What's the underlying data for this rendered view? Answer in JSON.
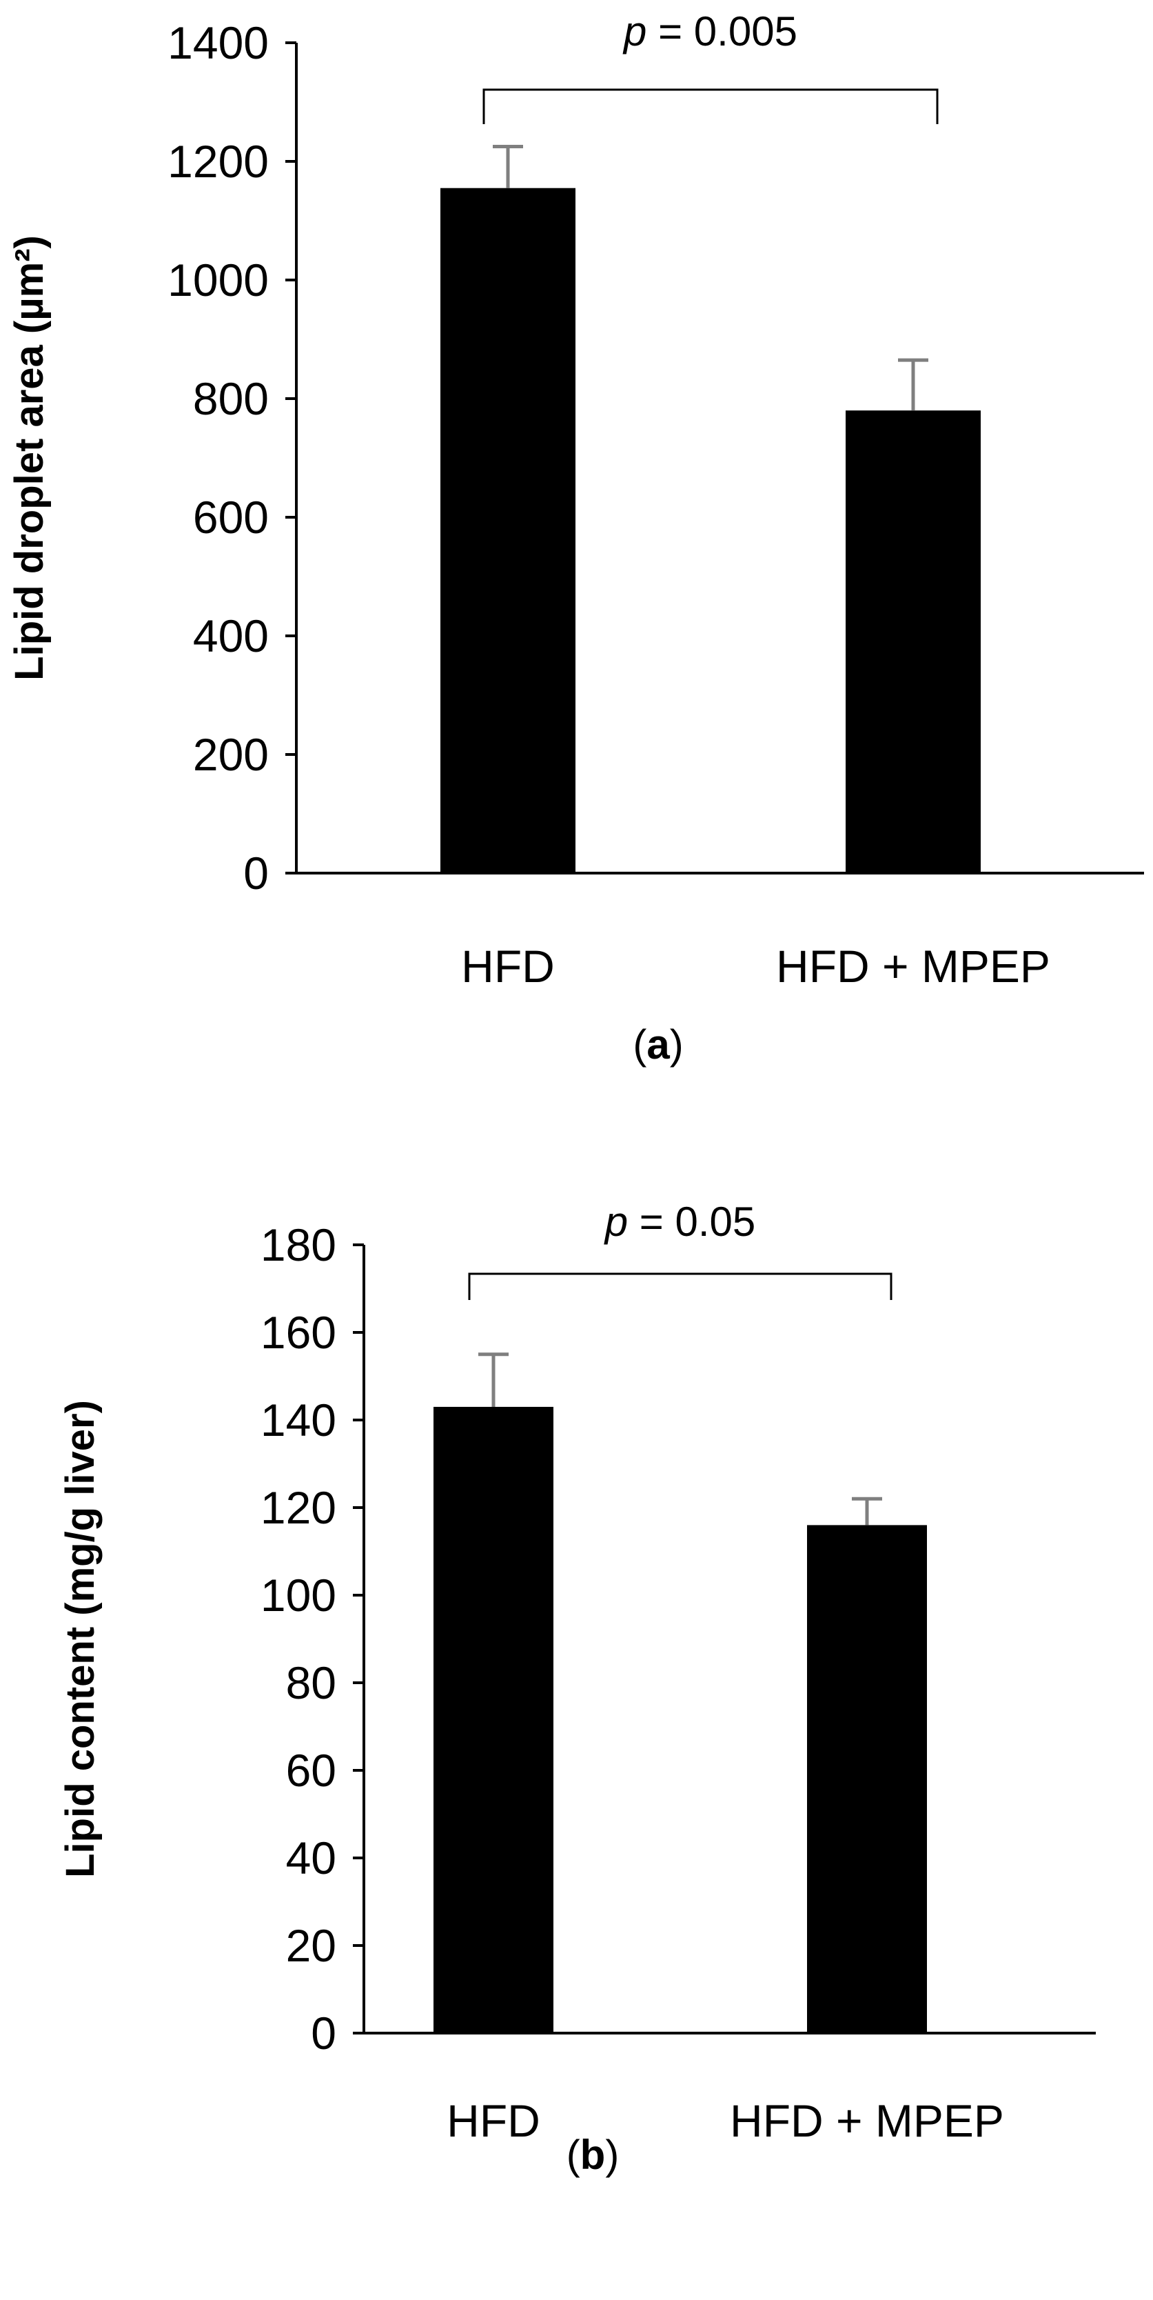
{
  "chart_data": [
    {
      "type": "bar",
      "panel_label": "a",
      "categories": [
        "HFD",
        "HFD + MPEP"
      ],
      "values": [
        1155,
        780
      ],
      "errors": [
        70,
        85
      ],
      "ylabel": "Lipid droplet area (µm²)",
      "ylim": [
        0,
        1400
      ],
      "yticks": [
        0,
        200,
        400,
        600,
        800,
        1000,
        1200,
        1400
      ],
      "grid": false,
      "bar_color": "#000000",
      "annotation": {
        "p_symbol": "p",
        "p_text": " = 0.005"
      }
    },
    {
      "type": "bar",
      "panel_label": "b",
      "categories": [
        "HFD",
        "HFD + MPEP"
      ],
      "values": [
        143,
        116
      ],
      "errors": [
        12,
        6
      ],
      "ylabel": "Lipid content (mg/g liver)",
      "ylim": [
        0,
        180
      ],
      "yticks": [
        0,
        20,
        40,
        60,
        80,
        100,
        120,
        140,
        160,
        180
      ],
      "grid": false,
      "bar_color": "#000000",
      "annotation": {
        "p_symbol": "p",
        "p_text": " = 0.05"
      }
    }
  ]
}
